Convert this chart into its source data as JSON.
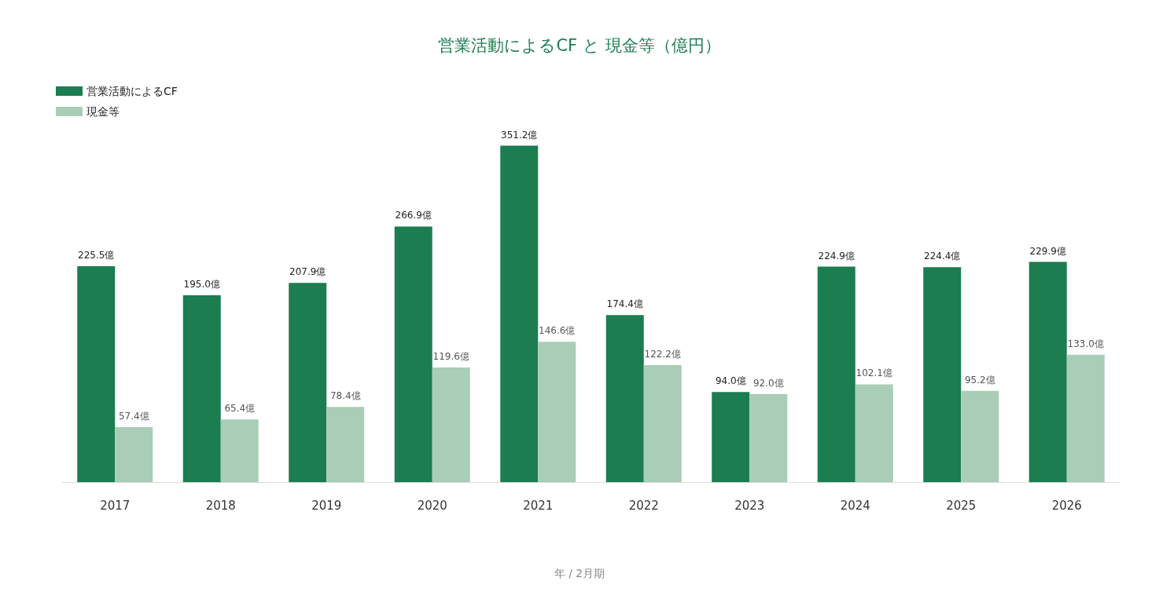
{
  "chart_data": {
    "type": "bar",
    "title": "営業活動によるCF と 現金等（億円）",
    "annotations": [
      "年 / 2月期"
    ],
    "categories": [
      "2017",
      "2018",
      "2019",
      "2020",
      "2021",
      "2022",
      "2023",
      "2024",
      "2025",
      "2026"
    ],
    "series": [
      {
        "name": "営業活動によるCF",
        "color": "#1b7d50",
        "values": [
          225.5,
          195.0,
          207.9,
          266.9,
          351.2,
          174.4,
          94.0,
          224.9,
          224.4,
          229.9
        ],
        "value_labels": [
          "225.5億",
          "195.0億",
          "207.9億",
          "266.9億",
          "351.2億",
          "174.4億",
          "94.0億",
          "224.9億",
          "224.4億",
          "229.9億"
        ]
      },
      {
        "name": "現金等",
        "color": "#a9cdb6",
        "values": [
          57.4,
          65.4,
          78.4,
          119.6,
          146.6,
          122.2,
          92.0,
          102.1,
          95.2,
          133.0
        ],
        "value_labels": [
          "57.4億",
          "65.4億",
          "78.4億",
          "119.6億",
          "146.6億",
          "122.2億",
          "92.0億",
          "102.1億",
          "95.2億",
          "133.0億"
        ]
      }
    ],
    "legend": "top left"
  }
}
